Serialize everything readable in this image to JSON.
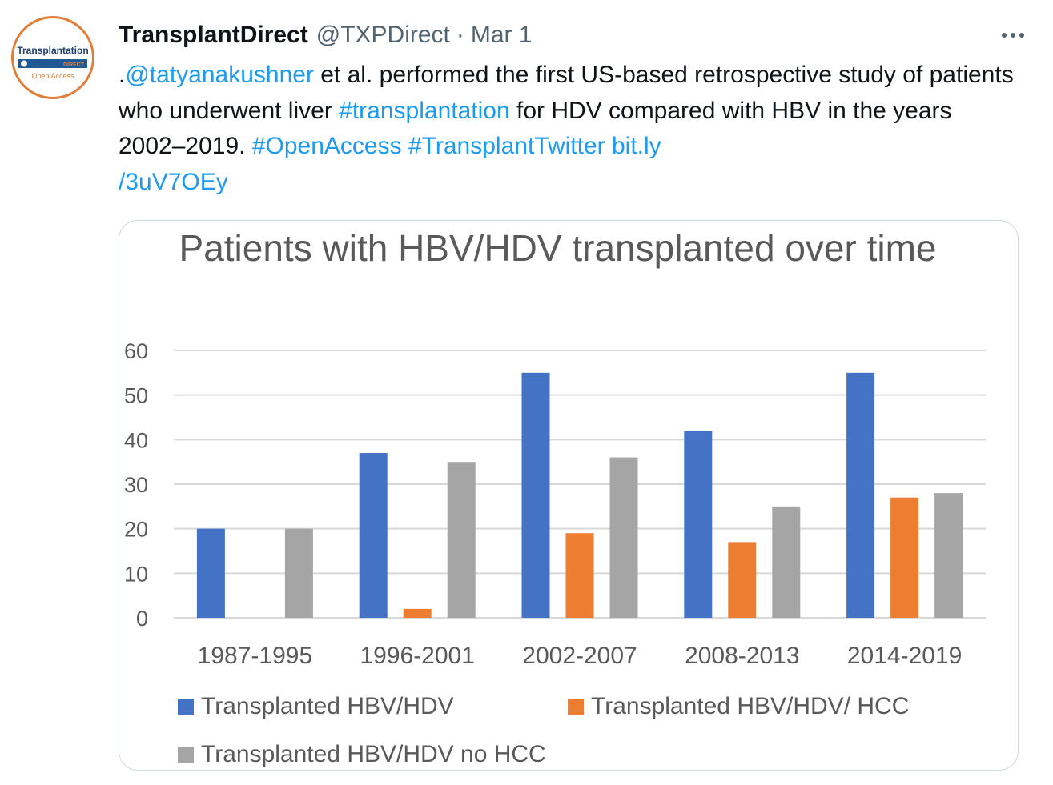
{
  "tweet": {
    "author_name": "TransplantDirect",
    "handle": "@TXPDirect",
    "separator": "·",
    "date": "Mar 1",
    "text_prefix": ".",
    "mention": "@tatyanakushner",
    "text_1": " et al. performed the first US-based retrospective study of patients who underwent liver ",
    "hashtag_1": "#transplantation",
    "text_2": " for HDV compared with HBV in the years 2002–2019. ",
    "hashtag_2": "#OpenAccess",
    "hashtag_3": "#TransplantTwitter",
    "url_line1": "bit.ly",
    "url_line2": "/3uV7OEy"
  },
  "avatar": {
    "brand": "Transplantation",
    "sub": "DIRECT",
    "tagline": "Open Access",
    "colors": {
      "ring": "#e07f3a",
      "bar": "#1f5a96",
      "text": "#1f3f73"
    }
  },
  "icons": {
    "more": "more-horizontal-icon"
  },
  "chart_data": {
    "type": "bar",
    "title": "Patients with HBV/HDV transplanted over time",
    "categories": [
      "1987-1995",
      "1996-2001",
      "2002-2007",
      "2008-2013",
      "2014-2019"
    ],
    "series": [
      {
        "name": "Transplanted HBV/HDV",
        "color": "#4472c4",
        "values": [
          20,
          37,
          55,
          42,
          55
        ]
      },
      {
        "name": "Transplanted HBV/HDV/ HCC",
        "color": "#ed7d31",
        "values": [
          0,
          2,
          19,
          17,
          27
        ]
      },
      {
        "name": "Transplanted HBV/HDV no HCC",
        "color": "#a5a5a5",
        "values": [
          20,
          35,
          36,
          25,
          28
        ]
      }
    ],
    "ylim": [
      0,
      60
    ],
    "yticks": [
      0,
      10,
      20,
      30,
      40,
      50,
      60
    ],
    "grid": true,
    "legend_position": "bottom"
  }
}
